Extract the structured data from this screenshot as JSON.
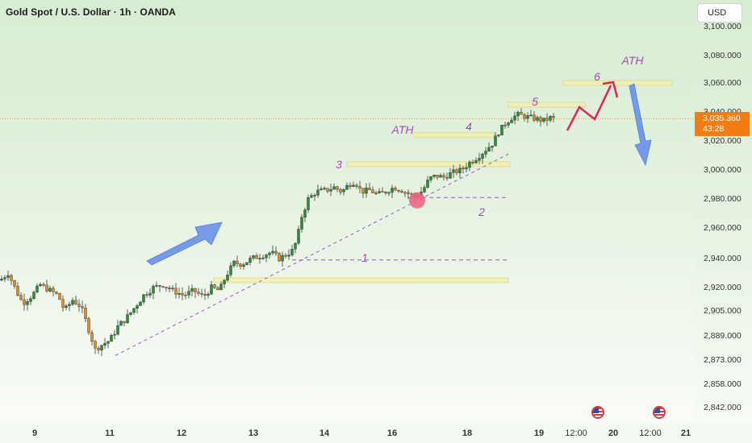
{
  "chart_data": {
    "type": "candlestick",
    "title": "Gold Spot / U.S. Dollar · 1h · OANDA",
    "currency": "USD",
    "current_price": "3,035.360",
    "countdown": "43:28",
    "y_ticks": [
      "3,100.000",
      "3,080.000",
      "3,060.000",
      "3,040.000",
      "3,020.000",
      "3,000.000",
      "2,980.000",
      "2,960.000",
      "2,940.000",
      "2,920.000",
      "2,905.000",
      "2,889.000",
      "2,873.000",
      "2,858.000",
      "2,842.000"
    ],
    "x_ticks": [
      {
        "label": "9",
        "bold": true
      },
      {
        "label": "11",
        "bold": true
      },
      {
        "label": "12",
        "bold": true
      },
      {
        "label": "13",
        "bold": true
      },
      {
        "label": "14",
        "bold": true
      },
      {
        "label": "16",
        "bold": true
      },
      {
        "label": "18",
        "bold": true
      },
      {
        "label": "19",
        "bold": true
      },
      {
        "label": "12:00",
        "bold": false
      },
      {
        "label": "20",
        "bold": true
      },
      {
        "label": "12:00",
        "bold": false
      },
      {
        "label": "21",
        "bold": true
      }
    ],
    "price_path": [
      [
        0,
        2925
      ],
      [
        10,
        2930
      ],
      [
        20,
        2918
      ],
      [
        28,
        2910
      ],
      [
        40,
        2915
      ],
      [
        50,
        2922
      ],
      [
        62,
        2918
      ],
      [
        72,
        2915
      ],
      [
        80,
        2905
      ],
      [
        90,
        2912
      ],
      [
        100,
        2908
      ],
      [
        110,
        2893
      ],
      [
        118,
        2880
      ],
      [
        126,
        2883
      ],
      [
        136,
        2886
      ],
      [
        146,
        2895
      ],
      [
        156,
        2900
      ],
      [
        168,
        2908
      ],
      [
        178,
        2915
      ],
      [
        190,
        2920
      ],
      [
        202,
        2922
      ],
      [
        214,
        2918
      ],
      [
        228,
        2915
      ],
      [
        240,
        2918
      ],
      [
        252,
        2914
      ],
      [
        262,
        2920
      ],
      [
        272,
        2918
      ],
      [
        280,
        2928
      ],
      [
        290,
        2937
      ],
      [
        300,
        2936
      ],
      [
        312,
        2940
      ],
      [
        324,
        2942
      ],
      [
        336,
        2944
      ],
      [
        346,
        2940
      ],
      [
        356,
        2943
      ],
      [
        362,
        2945
      ],
      [
        368,
        2952
      ],
      [
        374,
        2968
      ],
      [
        382,
        2980
      ],
      [
        392,
        2985
      ],
      [
        404,
        2986
      ],
      [
        414,
        2988
      ],
      [
        424,
        2985
      ],
      [
        432,
        2990
      ],
      [
        440,
        2992
      ],
      [
        448,
        2985
      ],
      [
        458,
        2986
      ],
      [
        468,
        2983
      ],
      [
        478,
        2985
      ],
      [
        488,
        2988
      ],
      [
        498,
        2986
      ],
      [
        508,
        2983
      ],
      [
        516,
        2982
      ],
      [
        524,
        2986
      ],
      [
        532,
        2994
      ],
      [
        540,
        2996
      ],
      [
        550,
        2995
      ],
      [
        560,
        2998
      ],
      [
        572,
        3000
      ],
      [
        582,
        3005
      ],
      [
        592,
        3009
      ],
      [
        602,
        3014
      ],
      [
        610,
        3018
      ],
      [
        618,
        3026
      ],
      [
        626,
        3032
      ],
      [
        634,
        3036
      ],
      [
        642,
        3038
      ],
      [
        650,
        3037
      ],
      [
        658,
        3036
      ],
      [
        666,
        3035
      ],
      [
        674,
        3034
      ],
      [
        682,
        3036
      ],
      [
        686,
        3035.36
      ]
    ],
    "annotations": {
      "labels": [
        "1",
        "2",
        "3",
        "4",
        "5",
        "6",
        "ATH",
        "ATH"
      ],
      "levels": [
        2939,
        2981,
        3004,
        3024,
        3045,
        3060,
        2925
      ]
    }
  }
}
